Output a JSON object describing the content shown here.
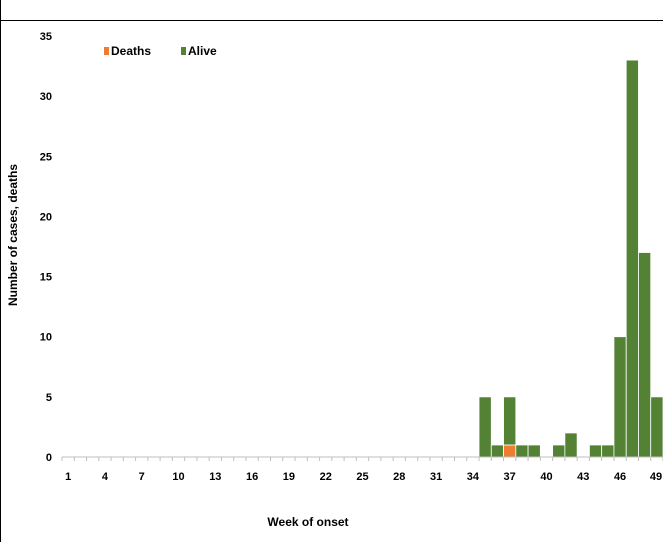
{
  "chart_data": {
    "type": "bar",
    "stacked": true,
    "xlabel": "Week of onset",
    "ylabel": "Number of cases, deaths",
    "ylim": [
      0,
      35
    ],
    "yticks": [
      0,
      5,
      10,
      15,
      20,
      25,
      30,
      35
    ],
    "xtick_labels": [
      "1",
      "4",
      "7",
      "10",
      "13",
      "16",
      "19",
      "22",
      "25",
      "28",
      "31",
      "34",
      "37",
      "40",
      "43",
      "46",
      "49"
    ],
    "categories": [
      1,
      2,
      3,
      4,
      5,
      6,
      7,
      8,
      9,
      10,
      11,
      12,
      13,
      14,
      15,
      16,
      17,
      18,
      19,
      20,
      21,
      22,
      23,
      24,
      25,
      26,
      27,
      28,
      29,
      30,
      31,
      32,
      33,
      34,
      35,
      36,
      37,
      38,
      39,
      40,
      41,
      42,
      43,
      44,
      45,
      46,
      47,
      48,
      49
    ],
    "series": [
      {
        "name": "Deaths",
        "color": "#ED7D31",
        "values": [
          0,
          0,
          0,
          0,
          0,
          0,
          0,
          0,
          0,
          0,
          0,
          0,
          0,
          0,
          0,
          0,
          0,
          0,
          0,
          0,
          0,
          0,
          0,
          0,
          0,
          0,
          0,
          0,
          0,
          0,
          0,
          0,
          0,
          0,
          0,
          0,
          1,
          0,
          0,
          0,
          0,
          0,
          0,
          0,
          0,
          0,
          0,
          0,
          0
        ]
      },
      {
        "name": "Alive",
        "color": "#548235",
        "values": [
          0,
          0,
          0,
          0,
          0,
          0,
          0,
          0,
          0,
          0,
          0,
          0,
          0,
          0,
          0,
          0,
          0,
          0,
          0,
          0,
          0,
          0,
          0,
          0,
          0,
          0,
          0,
          0,
          0,
          0,
          0,
          0,
          0,
          0,
          5,
          1,
          4,
          1,
          1,
          0,
          1,
          2,
          0,
          1,
          1,
          10,
          33,
          17,
          5
        ]
      }
    ],
    "legend_position": "top-left",
    "grid": false
  }
}
